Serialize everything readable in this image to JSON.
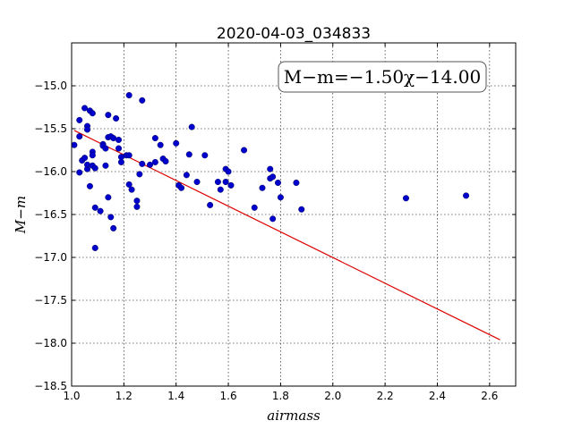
{
  "chart_data": {
    "type": "scatter",
    "title": "2020-04-03_034833",
    "xlabel": "airmass",
    "ylabel": "M−m",
    "xlim": [
      1.0,
      2.7
    ],
    "ylim": [
      -18.5,
      -14.5
    ],
    "xticks": [
      1.0,
      1.2,
      1.4,
      1.6,
      1.8,
      2.0,
      2.2,
      2.4,
      2.6
    ],
    "xtick_labels": [
      "1.0",
      "1.2",
      "1.4",
      "1.6",
      "1.8",
      "2.0",
      "2.2",
      "2.4",
      "2.6"
    ],
    "yticks": [
      -15.0,
      -15.5,
      -16.0,
      -16.5,
      -17.0,
      -17.5,
      -18.0,
      -18.5
    ],
    "ytick_labels": [
      "−15.0",
      "−15.5",
      "−16.0",
      "−16.5",
      "−17.0",
      "−17.5",
      "−18.0",
      "−18.5"
    ],
    "grid": true,
    "annotation": "M−m=−1.50χ−14.00",
    "point_color": "#0000cc",
    "line_color": "#dd0000",
    "fit_line": {
      "x": [
        1.01,
        2.64
      ],
      "y": [
        -15.52,
        -17.96
      ]
    },
    "points": [
      [
        1.01,
        -15.69
      ],
      [
        1.03,
        -15.4
      ],
      [
        1.03,
        -15.59
      ],
      [
        1.03,
        -16.01
      ],
      [
        1.04,
        -15.87
      ],
      [
        1.05,
        -15.26
      ],
      [
        1.05,
        -15.84
      ],
      [
        1.06,
        -15.47
      ],
      [
        1.06,
        -15.51
      ],
      [
        1.06,
        -15.97
      ],
      [
        1.06,
        -15.92
      ],
      [
        1.07,
        -15.29
      ],
      [
        1.07,
        -16.17
      ],
      [
        1.08,
        -15.32
      ],
      [
        1.08,
        -15.77
      ],
      [
        1.08,
        -15.81
      ],
      [
        1.08,
        -15.93
      ],
      [
        1.09,
        -15.96
      ],
      [
        1.09,
        -16.42
      ],
      [
        1.09,
        -16.89
      ],
      [
        1.11,
        -16.46
      ],
      [
        1.12,
        -15.68
      ],
      [
        1.12,
        -15.7
      ],
      [
        1.13,
        -15.73
      ],
      [
        1.13,
        -15.93
      ],
      [
        1.14,
        -15.34
      ],
      [
        1.14,
        -15.6
      ],
      [
        1.14,
        -16.3
      ],
      [
        1.15,
        -15.59
      ],
      [
        1.15,
        -16.53
      ],
      [
        1.16,
        -15.61
      ],
      [
        1.16,
        -16.66
      ],
      [
        1.17,
        -15.38
      ],
      [
        1.18,
        -15.63
      ],
      [
        1.18,
        -15.73
      ],
      [
        1.19,
        -15.83
      ],
      [
        1.19,
        -15.89
      ],
      [
        1.21,
        -15.81
      ],
      [
        1.22,
        -15.11
      ],
      [
        1.22,
        -15.81
      ],
      [
        1.22,
        -16.15
      ],
      [
        1.23,
        -16.21
      ],
      [
        1.25,
        -16.34
      ],
      [
        1.25,
        -16.41
      ],
      [
        1.26,
        -16.03
      ],
      [
        1.27,
        -15.17
      ],
      [
        1.27,
        -15.91
      ],
      [
        1.3,
        -15.92
      ],
      [
        1.32,
        -15.89
      ],
      [
        1.32,
        -15.61
      ],
      [
        1.34,
        -15.69
      ],
      [
        1.35,
        -15.85
      ],
      [
        1.36,
        -15.88
      ],
      [
        1.4,
        -15.67
      ],
      [
        1.41,
        -16.16
      ],
      [
        1.42,
        -16.19
      ],
      [
        1.44,
        -16.04
      ],
      [
        1.45,
        -15.8
      ],
      [
        1.46,
        -15.48
      ],
      [
        1.48,
        -16.12
      ],
      [
        1.51,
        -15.81
      ],
      [
        1.53,
        -16.39
      ],
      [
        1.56,
        -16.12
      ],
      [
        1.57,
        -16.21
      ],
      [
        1.59,
        -15.97
      ],
      [
        1.59,
        -16.12
      ],
      [
        1.6,
        -16.0
      ],
      [
        1.61,
        -16.16
      ],
      [
        1.66,
        -15.75
      ],
      [
        1.7,
        -16.42
      ],
      [
        1.73,
        -16.19
      ],
      [
        1.76,
        -16.08
      ],
      [
        1.76,
        -15.97
      ],
      [
        1.77,
        -16.55
      ],
      [
        1.77,
        -16.06
      ],
      [
        1.79,
        -16.13
      ],
      [
        1.8,
        -16.3
      ],
      [
        1.86,
        -16.13
      ],
      [
        1.88,
        -16.44
      ],
      [
        2.28,
        -16.31
      ],
      [
        2.51,
        -16.28
      ]
    ]
  }
}
